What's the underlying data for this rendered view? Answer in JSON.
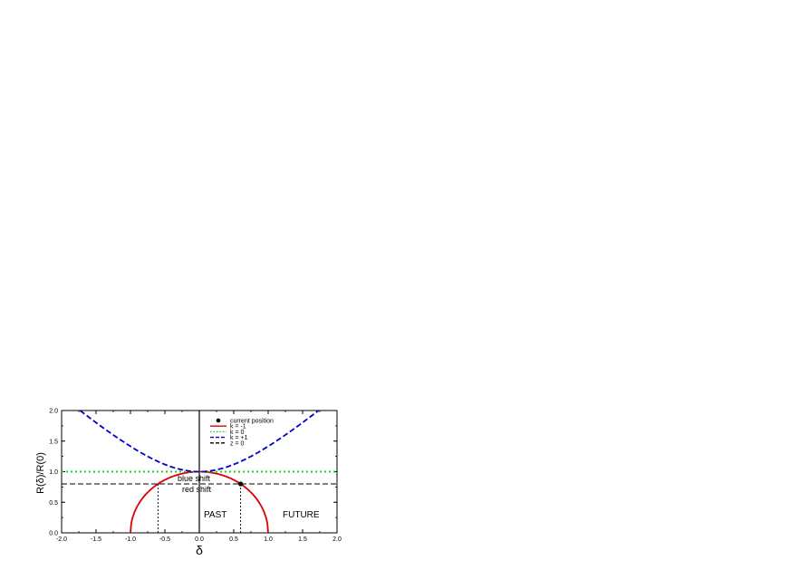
{
  "chart_data": {
    "type": "line",
    "xlabel": "δ",
    "ylabel": "R(δ)/R(0)",
    "xlim": [
      -2.0,
      2.0
    ],
    "ylim": [
      0.0,
      2.0
    ],
    "xticks": [
      "-2.0",
      "-1.5",
      "-1.0",
      "-0.5",
      "0.0",
      "0.5",
      "1.0",
      "1.5",
      "2.0"
    ],
    "yticks": [
      "0.0",
      "0.5",
      "1.0",
      "1.5",
      "2.0"
    ],
    "xtick_values": [
      -2.0,
      -1.5,
      -1.0,
      -0.5,
      0.0,
      0.5,
      1.0,
      1.5,
      2.0
    ],
    "ytick_values": [
      0.0,
      0.5,
      1.0,
      1.5,
      2.0
    ],
    "grid": false,
    "legend_position": "top-right",
    "legend": [
      {
        "label": "current position",
        "style": "marker",
        "color": "#000000"
      },
      {
        "label": "k = -1",
        "style": "solid",
        "color": "#dd0000"
      },
      {
        "label": "k = 0",
        "style": "dotted",
        "color": "#22cc22"
      },
      {
        "label": "k = +1",
        "style": "dashed",
        "color": "#0000cc"
      },
      {
        "label": "z = 0",
        "style": "dashed",
        "color": "#000000"
      }
    ],
    "series": [
      {
        "name": "k = -1",
        "formula": "sqrt(1 - δ^2)",
        "x_range": [
          -1.0,
          1.0
        ],
        "color": "#dd0000",
        "style": "solid"
      },
      {
        "name": "k = 0",
        "formula": "1",
        "x_range": [
          -2.0,
          2.0
        ],
        "color": "#22cc22",
        "style": "dotted"
      },
      {
        "name": "k = +1",
        "formula": "sqrt(1 + δ^2)",
        "x_range": [
          -1.73,
          1.73
        ],
        "color": "#0000cc",
        "style": "dashed"
      },
      {
        "name": "z = 0",
        "formula": "0.8",
        "x_range": [
          -2.0,
          2.0
        ],
        "color": "#000000",
        "style": "dashed"
      }
    ],
    "current_position": {
      "x": 0.6,
      "y": 0.8
    },
    "annotations": {
      "blue_shift": "blue shift",
      "red_shift": "red shift",
      "past": "PAST",
      "future": "FUTURE"
    }
  }
}
